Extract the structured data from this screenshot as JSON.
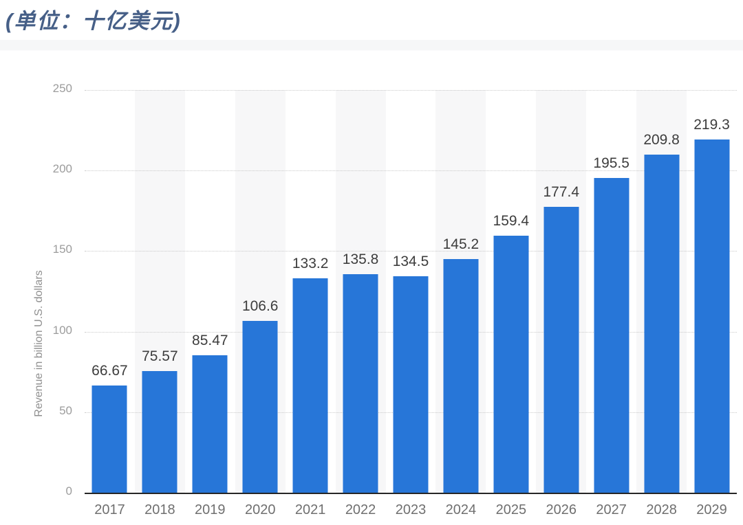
{
  "header": {
    "title_color": "#465f87"
  },
  "chart_data": {
    "type": "bar",
    "title": "(单位：十亿美元)",
    "title_meaning": "(Unit: billion U.S. dollars)",
    "categories": [
      "2017",
      "2018",
      "2019",
      "2020",
      "2021",
      "2022",
      "2023",
      "2024",
      "2025",
      "2026",
      "2027",
      "2028",
      "2029"
    ],
    "values": [
      66.67,
      75.57,
      85.47,
      106.6,
      133.2,
      135.8,
      134.5,
      145.2,
      159.4,
      177.4,
      195.5,
      209.8,
      219.3
    ],
    "value_labels": [
      "66.67",
      "75.57",
      "85.47",
      "106.6",
      "133.2",
      "135.8",
      "134.5",
      "145.2",
      "159.4",
      "177.4",
      "195.5",
      "209.8",
      "219.3"
    ],
    "xlabel": "",
    "ylabel": "Revenue in billion U.S. dollars",
    "y_ticks": [
      0,
      50,
      100,
      150,
      200,
      250
    ],
    "ylim": [
      0,
      250
    ],
    "grid": "horizontal-dotted",
    "legend": "none",
    "colors": {
      "bar": "#2776d8",
      "band": "#f7f7f8",
      "gridline": "#c9c9c9",
      "axis_line": "#262626",
      "value_label": "#3d3d3d",
      "x_tick_label": "#6f6f6f",
      "y_tick_label": "#9c9c9c",
      "y_axis_title": "#8f8f8f"
    }
  }
}
